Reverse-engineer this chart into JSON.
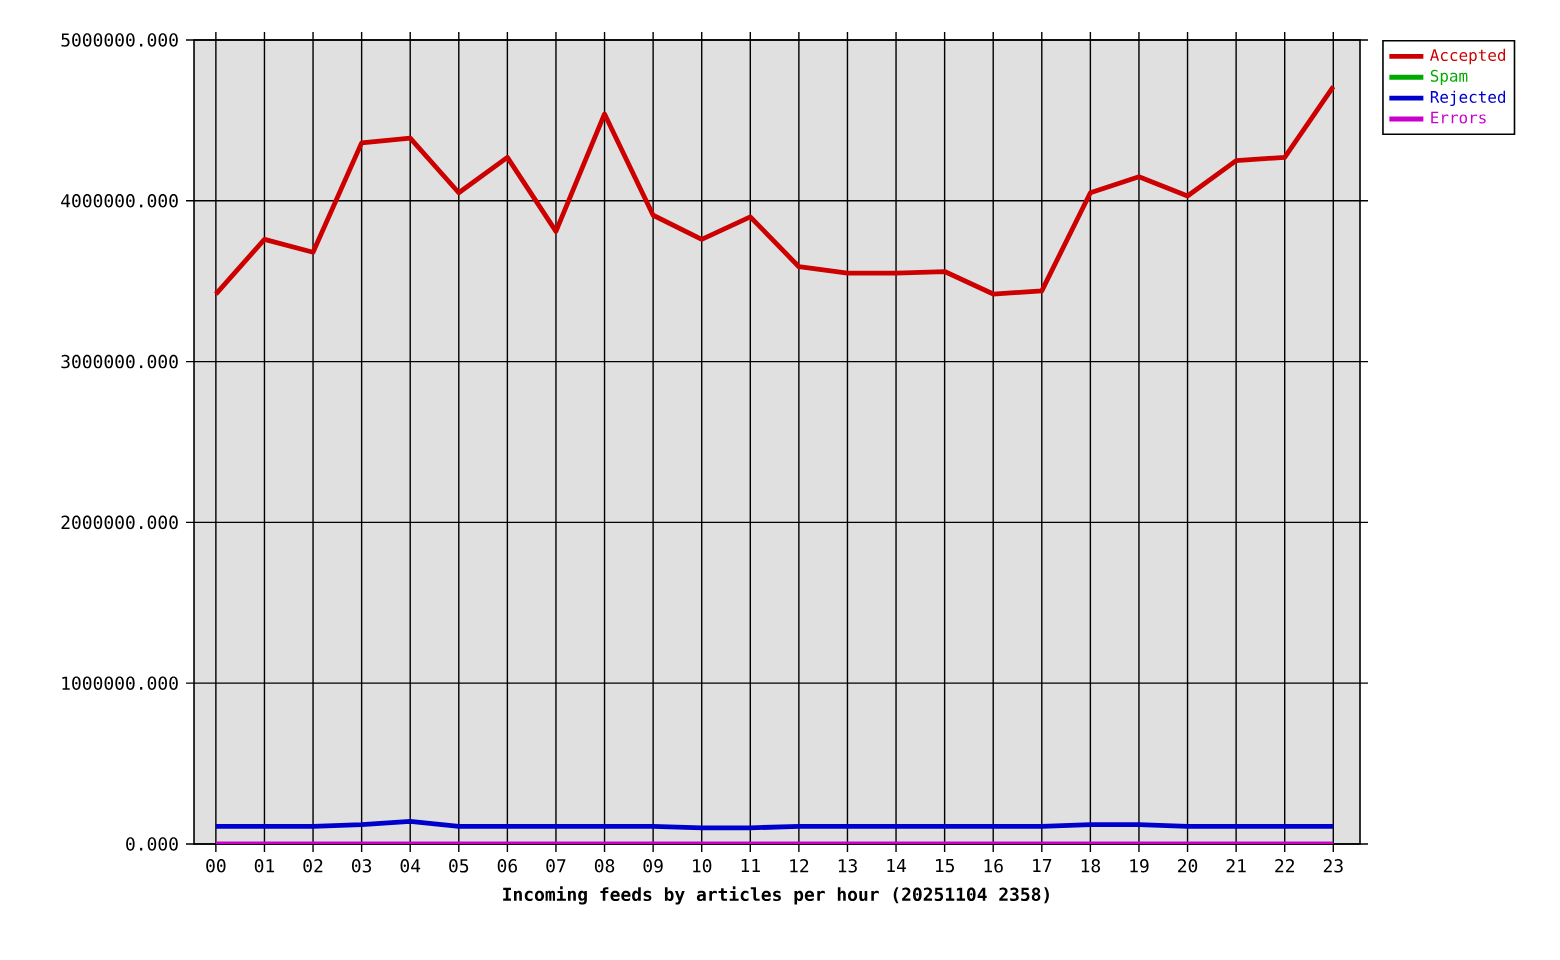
{
  "chart_data": {
    "type": "line",
    "xlabel": "Incoming feeds by articles per hour (20251104 2358)",
    "categories": [
      "00",
      "01",
      "02",
      "03",
      "04",
      "05",
      "06",
      "07",
      "08",
      "09",
      "10",
      "11",
      "12",
      "13",
      "14",
      "15",
      "16",
      "17",
      "18",
      "19",
      "20",
      "21",
      "22",
      "23"
    ],
    "series": [
      {
        "name": "Accepted",
        "color": "#cc0000",
        "values": [
          3420000,
          3760000,
          3680000,
          4360000,
          4390000,
          4050000,
          4270000,
          3810000,
          4540000,
          3910000,
          3760000,
          3900000,
          3590000,
          3550000,
          3550000,
          3560000,
          3420000,
          3440000,
          4050000,
          4150000,
          4030000,
          4250000,
          4270000,
          4710000
        ]
      },
      {
        "name": "Spam",
        "color": "#00aa00",
        "values": [
          null,
          null,
          null,
          null,
          null,
          null,
          null,
          null,
          null,
          null,
          null,
          null,
          null,
          null,
          null,
          null,
          null,
          null,
          null,
          null,
          null,
          null,
          null,
          null
        ]
      },
      {
        "name": "Rejected",
        "color": "#0000cc",
        "values": [
          110000,
          110000,
          110000,
          120000,
          140000,
          110000,
          110000,
          110000,
          110000,
          110000,
          100000,
          100000,
          110000,
          110000,
          110000,
          110000,
          110000,
          110000,
          120000,
          120000,
          110000,
          110000,
          110000,
          110000
        ]
      },
      {
        "name": "Errors",
        "color": "#cc00cc",
        "values": [
          0,
          0,
          0,
          0,
          0,
          0,
          0,
          0,
          0,
          0,
          0,
          0,
          0,
          0,
          0,
          0,
          0,
          0,
          0,
          0,
          0,
          0,
          0,
          0
        ]
      }
    ],
    "ylim": [
      0,
      5000000
    ],
    "yticks": [
      {
        "value": 0,
        "label": "0.000"
      },
      {
        "value": 1000000,
        "label": "1000000.000"
      },
      {
        "value": 2000000,
        "label": "2000000.000"
      },
      {
        "value": 3000000,
        "label": "3000000.000"
      },
      {
        "value": 4000000,
        "label": "4000000.000"
      },
      {
        "value": 5000000,
        "label": "5000000.000"
      }
    ],
    "grid": true,
    "legend": "top right"
  }
}
